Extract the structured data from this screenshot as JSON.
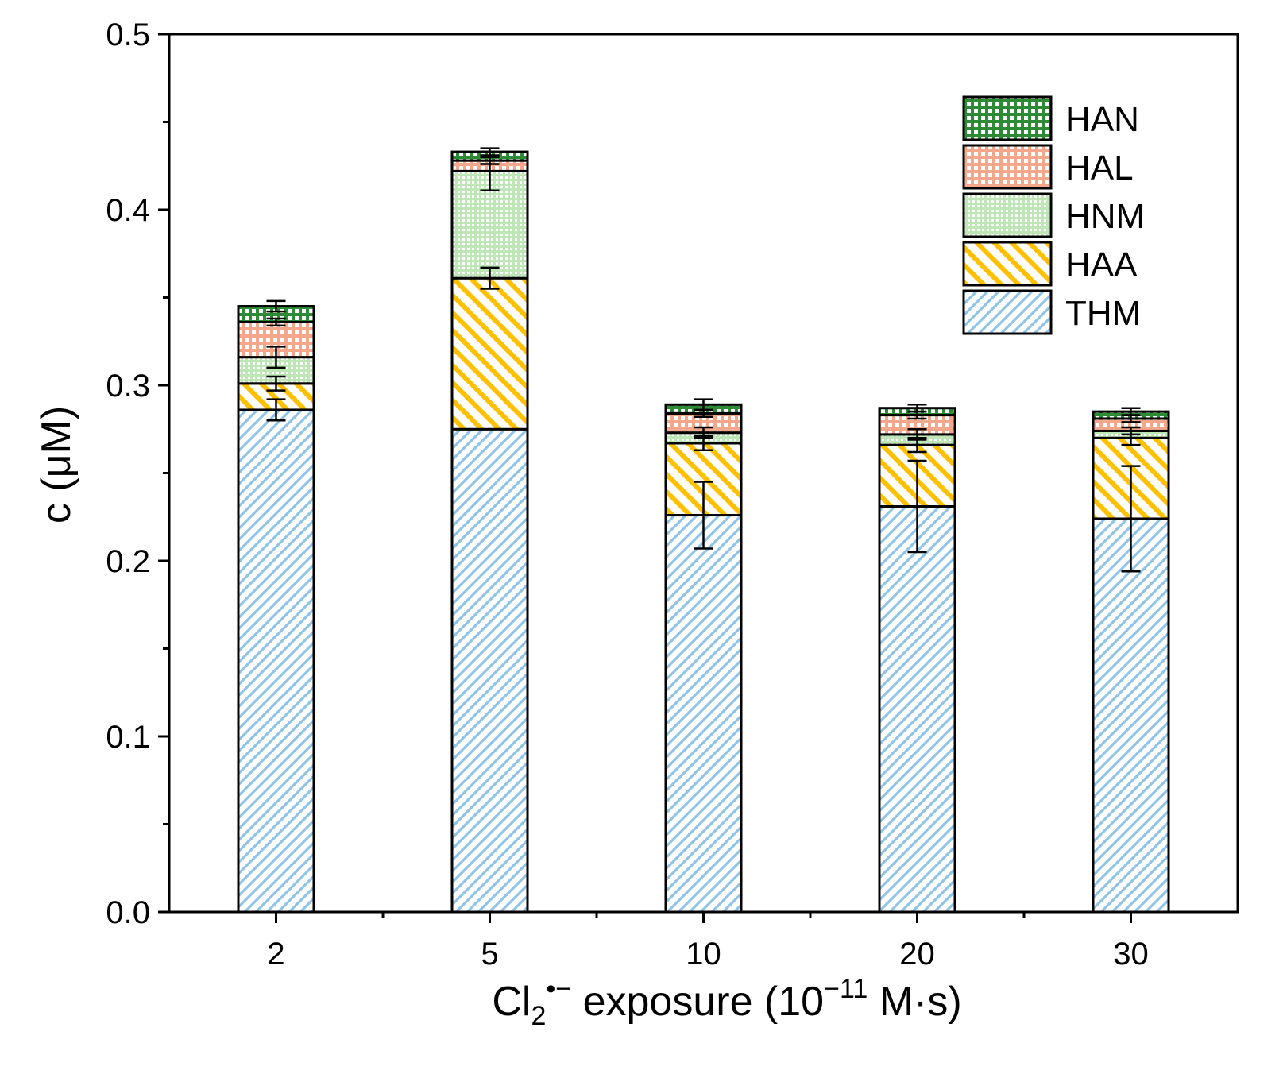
{
  "chart_data": {
    "type": "bar",
    "stacked": true,
    "categories": [
      "2",
      "5",
      "10",
      "20",
      "30"
    ],
    "series": [
      {
        "name": "THM",
        "values": [
          0.286,
          0.275,
          0.226,
          0.231,
          0.224
        ],
        "errors": [
          0.006,
          0.0,
          0.019,
          0.026,
          0.03
        ],
        "color": "#8fc4ea",
        "pattern": "diag-left"
      },
      {
        "name": "HAA",
        "values": [
          0.015,
          0.086,
          0.041,
          0.035,
          0.046
        ],
        "errors": [
          0.004,
          0.006,
          0.004,
          0.004,
          0.004
        ],
        "color": "#ffc000",
        "pattern": "diag-right"
      },
      {
        "name": "HNM",
        "values": [
          0.015,
          0.061,
          0.006,
          0.006,
          0.004
        ],
        "errors": [
          0.006,
          0.011,
          0.003,
          0.003,
          0.002
        ],
        "color": "#a9dca1",
        "pattern": "dots"
      },
      {
        "name": "HAL",
        "values": [
          0.02,
          0.006,
          0.011,
          0.011,
          0.007
        ],
        "errors": [
          0.002,
          0.002,
          0.002,
          0.002,
          0.002
        ],
        "color": "#f4a78b",
        "pattern": "grid"
      },
      {
        "name": "HAN",
        "values": [
          0.009,
          0.005,
          0.005,
          0.004,
          0.004
        ],
        "errors": [
          0.003,
          0.002,
          0.003,
          0.002,
          0.002
        ],
        "color": "#2e8b35",
        "pattern": "grid-dark"
      }
    ],
    "xlabel": {
      "prefix": "Cl",
      "sub": "2",
      "sup": "•−",
      "middle": " exposure (10",
      "exp": "−11",
      "suffix": " M·s)"
    },
    "ylabel": "c (μM)",
    "ylim": [
      0,
      0.5
    ],
    "yticks": [
      "0.0",
      "0.1",
      "0.2",
      "0.3",
      "0.4",
      "0.5"
    ],
    "legend_position": "top-right",
    "grid": false
  }
}
